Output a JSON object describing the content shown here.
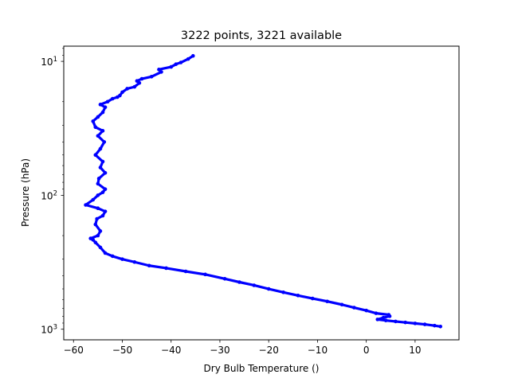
{
  "chart_data": {
    "type": "line",
    "title": "3222 points, 3221 available",
    "xlabel": "Dry Bulb Temperature ()",
    "ylabel": "Pressure (hPa)",
    "xlim": [
      -62,
      19
    ],
    "ylim": [
      1200,
      7.7
    ],
    "yscale": "log",
    "y_inverted": true,
    "grid": false,
    "x_ticks": [
      -60,
      -50,
      -40,
      -30,
      -20,
      -10,
      0,
      10
    ],
    "x_tick_labels": [
      "−60",
      "−50",
      "−40",
      "−30",
      "−20",
      "−10",
      "0",
      "10"
    ],
    "y_ticks": [
      10,
      100,
      1000
    ],
    "y_tick_labels": [
      "10",
      "10",
      "10"
    ],
    "y_tick_exponents": [
      "1",
      "2",
      "3"
    ],
    "series": [
      {
        "color": "#0000ff",
        "marker": "point",
        "x": [
          15.2,
          14.0,
          12.0,
          10.0,
          8.0,
          6.0,
          4.0,
          2.3,
          3.5,
          4.8,
          4.6,
          2.0,
          0.0,
          -2.5,
          -5.0,
          -8.0,
          -11.0,
          -14.0,
          -17.0,
          -20.0,
          -23.0,
          -26.0,
          -29.0,
          -33.0,
          -37.0,
          -41.0,
          -44.5,
          -47.5,
          -50.0,
          -52.0,
          -53.5,
          -54.5,
          -55.5,
          -56.0,
          -56.5,
          -55.0,
          -54.5,
          -55.5,
          -55.2,
          -54.0,
          -53.5,
          -55.0,
          -57.5,
          -56.0,
          -55.0,
          -54.0,
          -53.5,
          -55.0,
          -54.8,
          -53.5,
          -54.5,
          -54.0,
          -55.5,
          -54.5,
          -53.7,
          -55.0,
          -54.0,
          -55.5,
          -56.0,
          -55.0,
          -54.0,
          -53.5,
          -54.5,
          -53.0,
          -52.0,
          -51.0,
          -50.5,
          -50.0,
          -49.0,
          -47.5,
          -46.5,
          -47.0,
          -46.0,
          -44.0,
          -42.0,
          -42.5,
          -40.0,
          -39.0,
          -38.0,
          -36.5,
          -35.5
        ],
        "y": [
          955,
          940,
          920,
          905,
          890,
          875,
          860,
          845,
          820,
          800,
          780,
          760,
          725,
          690,
          655,
          620,
          590,
          560,
          530,
          500,
          470,
          445,
          420,
          390,
          370,
          350,
          335,
          315,
          300,
          285,
          270,
          245,
          225,
          215,
          210,
          200,
          185,
          165,
          150,
          142,
          132,
          125,
          118,
          108,
          100,
          95,
          90,
          82,
          75,
          68,
          62,
          56,
          50,
          45,
          40,
          36,
          33,
          31,
          28,
          26,
          24,
          22,
          21,
          20,
          19,
          18.5,
          18,
          17,
          16,
          15.5,
          14.5,
          14,
          13.5,
          13,
          12,
          11.5,
          11,
          10.5,
          10.2,
          9.6,
          9.1
        ]
      }
    ]
  }
}
